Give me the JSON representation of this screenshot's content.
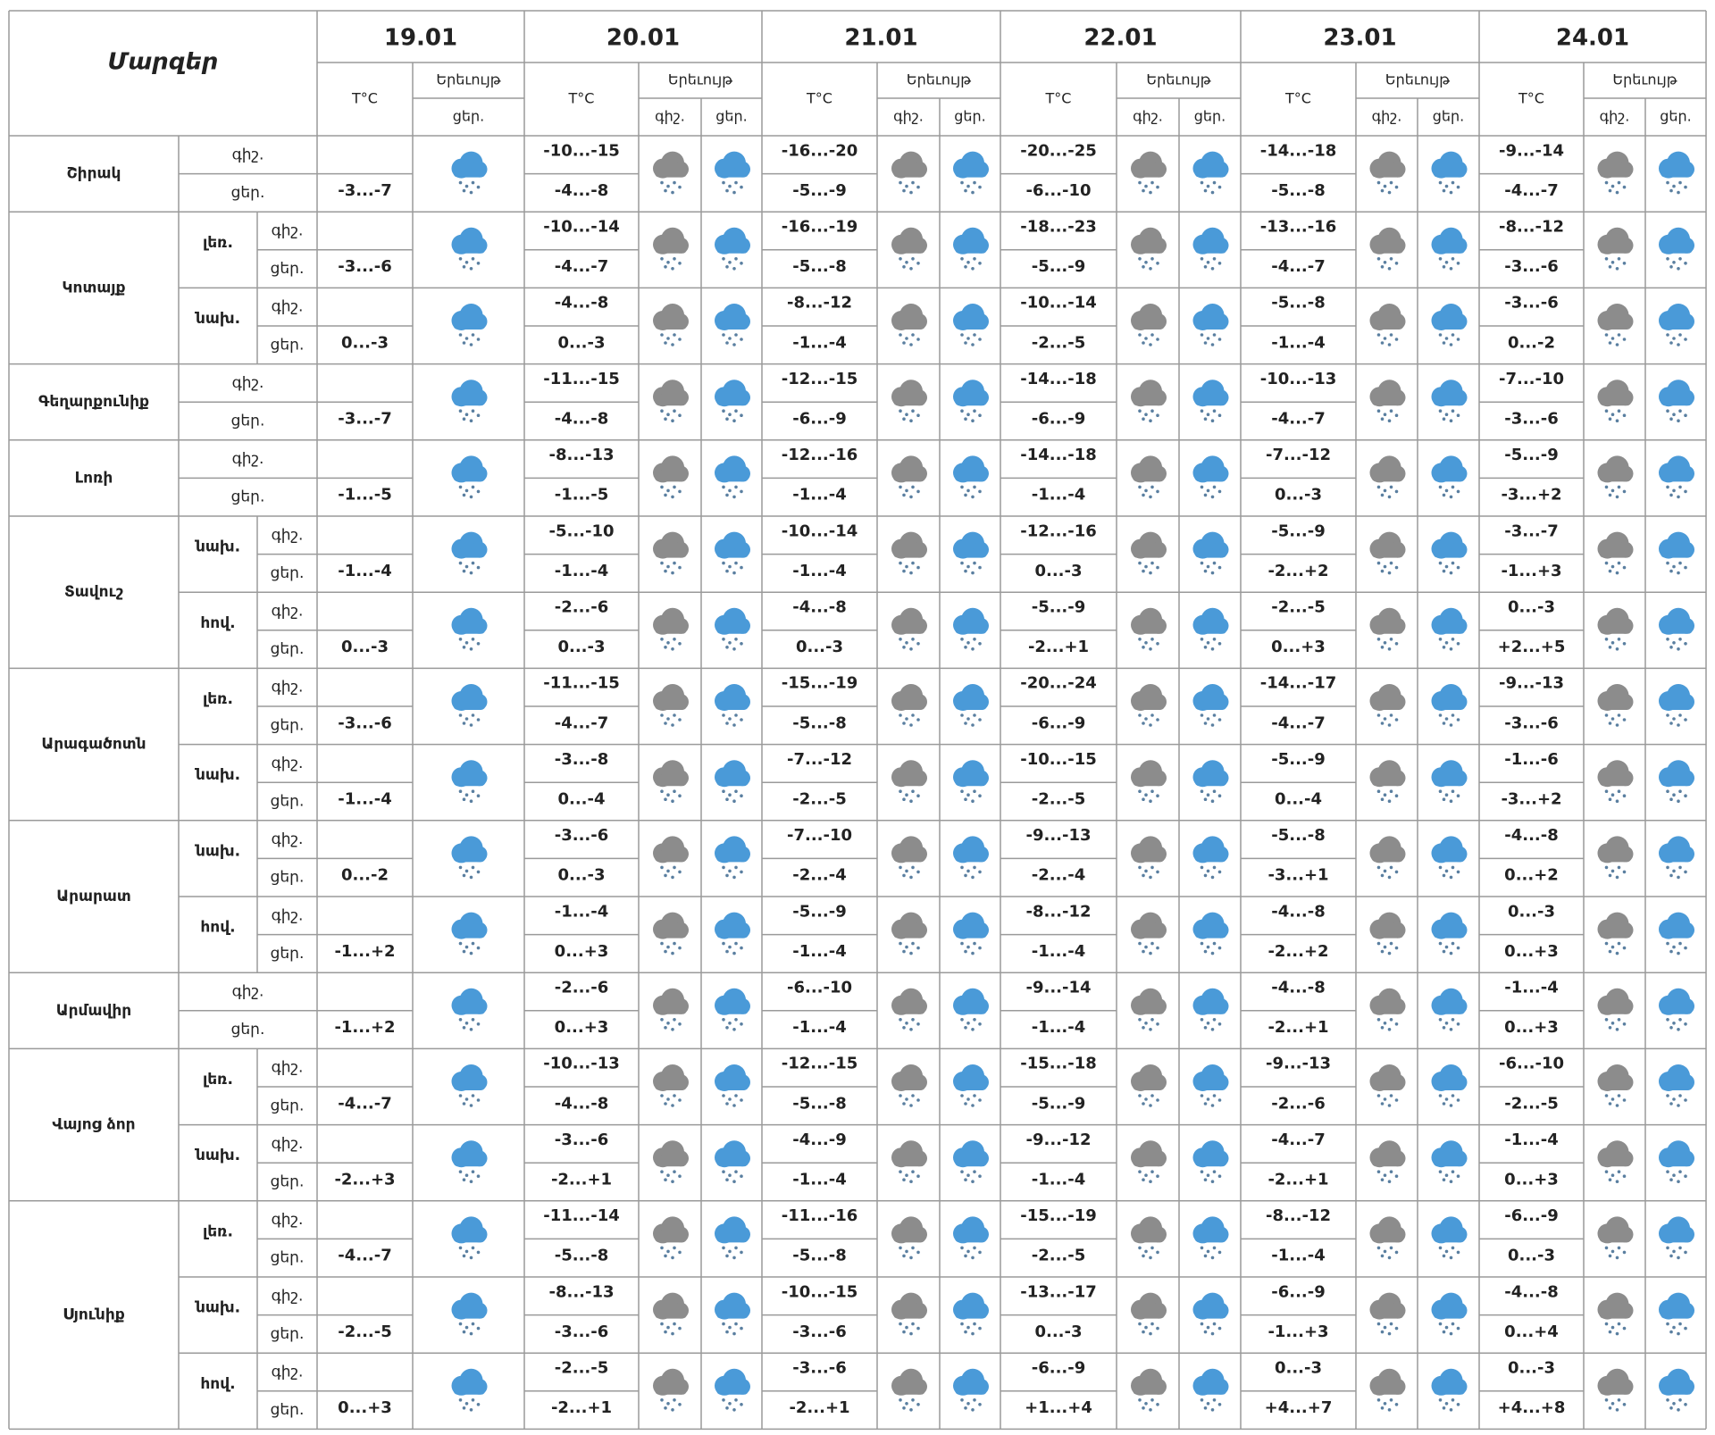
{
  "header": {
    "title": "Մարզեր",
    "dates": [
      "19.01",
      "20.01",
      "21.01",
      "22.01",
      "23.01",
      "24.01"
    ],
    "temp_label": "T°C",
    "phenomenon_label": "Երեւույթ",
    "night": "գիշ.",
    "day": "ցեր."
  },
  "regions": [
    {
      "name": "Շիրակ",
      "zones": [
        {
          "night": [
            "-10...-15",
            "-16...-20",
            "-20...-25",
            "-14...-18",
            "-9...-14"
          ],
          "day": [
            "-3...-7",
            "-4...-8",
            "-5...-9",
            "-6...-10",
            "-5...-8",
            "-4...-7"
          ]
        }
      ]
    },
    {
      "name": "Կոտայք",
      "zones": [
        {
          "name": "լեռ.",
          "night": [
            "-10...-14",
            "-16...-19",
            "-18...-23",
            "-13...-16",
            "-8...-12"
          ],
          "day": [
            "-3...-6",
            "-4...-7",
            "-5...-8",
            "-5...-9",
            "-4...-7",
            "-3...-6"
          ]
        },
        {
          "name": "նախ.",
          "night": [
            "-4...-8",
            "-8...-12",
            "-10...-14",
            "-5...-8",
            "-3...-6"
          ],
          "day": [
            "0...-3",
            "0...-3",
            "-1...-4",
            "-2...-5",
            "-1...-4",
            "0...-2"
          ]
        }
      ]
    },
    {
      "name": "Գեղարքունիք",
      "zones": [
        {
          "night": [
            "-11...-15",
            "-12...-15",
            "-14...-18",
            "-10...-13",
            "-7...-10"
          ],
          "day": [
            "-3...-7",
            "-4...-8",
            "-6...-9",
            "-6...-9",
            "-4...-7",
            "-3...-6"
          ]
        }
      ]
    },
    {
      "name": "Լոռի",
      "zones": [
        {
          "night": [
            "-8...-13",
            "-12...-16",
            "-14...-18",
            "-7...-12",
            "-5...-9"
          ],
          "day": [
            "-1...-5",
            "-1...-5",
            "-1...-4",
            "-1...-4",
            "0...-3",
            "-3...+2"
          ]
        }
      ]
    },
    {
      "name": "Տավուշ",
      "zones": [
        {
          "name": "նախ.",
          "night": [
            "-5...-10",
            "-10...-14",
            "-12...-16",
            "-5...-9",
            "-3...-7"
          ],
          "day": [
            "-1...-4",
            "-1...-4",
            "-1...-4",
            "0...-3",
            "-2...+2",
            "-1...+3"
          ]
        },
        {
          "name": "հով.",
          "night": [
            "-2...-6",
            "-4...-8",
            "-5...-9",
            "-2...-5",
            "0...-3"
          ],
          "day": [
            "0...-3",
            "0...-3",
            "0...-3",
            "-2...+1",
            "0...+3",
            "+2...+5"
          ]
        }
      ]
    },
    {
      "name": "Արագածոտն",
      "zones": [
        {
          "name": "լեռ.",
          "night": [
            "-11...-15",
            "-15...-19",
            "-20...-24",
            "-14...-17",
            "-9...-13"
          ],
          "day": [
            "-3...-6",
            "-4...-7",
            "-5...-8",
            "-6...-9",
            "-4...-7",
            "-3...-6"
          ]
        },
        {
          "name": "նախ.",
          "night": [
            "-3...-8",
            "-7...-12",
            "-10...-15",
            "-5...-9",
            "-1...-6"
          ],
          "day": [
            "-1...-4",
            "0...-4",
            "-2...-5",
            "-2...-5",
            "0...-4",
            "-3...+2"
          ]
        }
      ]
    },
    {
      "name": "Արարատ",
      "zones": [
        {
          "name": "նախ.",
          "night": [
            "-3...-6",
            "-7...-10",
            "-9...-13",
            "-5...-8",
            "-4...-8"
          ],
          "day": [
            "0...-2",
            "0...-3",
            "-2...-4",
            "-2...-4",
            "-3...+1",
            "0...+2"
          ]
        },
        {
          "name": "հով.",
          "night": [
            "-1...-4",
            "-5...-9",
            "-8...-12",
            "-4...-8",
            "0...-3"
          ],
          "day": [
            "-1...+2",
            "0...+3",
            "-1...-4",
            "-1...-4",
            "-2...+2",
            "0...+3"
          ]
        }
      ]
    },
    {
      "name": "Արմավիր",
      "zones": [
        {
          "night": [
            "-2...-6",
            "-6...-10",
            "-9...-14",
            "-4...-8",
            "-1...-4"
          ],
          "day": [
            "-1...+2",
            "0...+3",
            "-1...-4",
            "-1...-4",
            "-2...+1",
            "0...+3"
          ]
        }
      ]
    },
    {
      "name": "Վայոց ձոր",
      "zones": [
        {
          "name": "լեռ.",
          "night": [
            "-10...-13",
            "-12...-15",
            "-15...-18",
            "-9...-13",
            "-6...-10"
          ],
          "day": [
            "-4...-7",
            "-4...-8",
            "-5...-8",
            "-5...-9",
            "-2...-6",
            "-2...-5"
          ]
        },
        {
          "name": "նախ.",
          "night": [
            "-3...-6",
            "-4...-9",
            "-9...-12",
            "-4...-7",
            "-1...-4"
          ],
          "day": [
            "-2...+3",
            "-2...+1",
            "-1...-4",
            "-1...-4",
            "-2...+1",
            "0...+3"
          ]
        }
      ]
    },
    {
      "name": "Սյունիք",
      "zones": [
        {
          "name": "լեռ.",
          "night": [
            "-11...-14",
            "-11...-16",
            "-15...-19",
            "-8...-12",
            "-6...-9"
          ],
          "day": [
            "-4...-7",
            "-5...-8",
            "-5...-8",
            "-2...-5",
            "-1...-4",
            "0...-3"
          ]
        },
        {
          "name": "նախ.",
          "night": [
            "-8...-13",
            "-10...-15",
            "-13...-17",
            "-6...-9",
            "-4...-8"
          ],
          "day": [
            "-2...-5",
            "-3...-6",
            "-3...-6",
            "0...-3",
            "-1...+3",
            "0...+4"
          ]
        },
        {
          "name": "հով.",
          "night": [
            "-2...-5",
            "-3...-6",
            "-6...-9",
            "0...-3",
            "0...-3"
          ],
          "day": [
            "0...+3",
            "-2...+1",
            "-2...+1",
            "+1...+4",
            "+4...+7",
            "+4...+8"
          ]
        }
      ]
    }
  ]
}
